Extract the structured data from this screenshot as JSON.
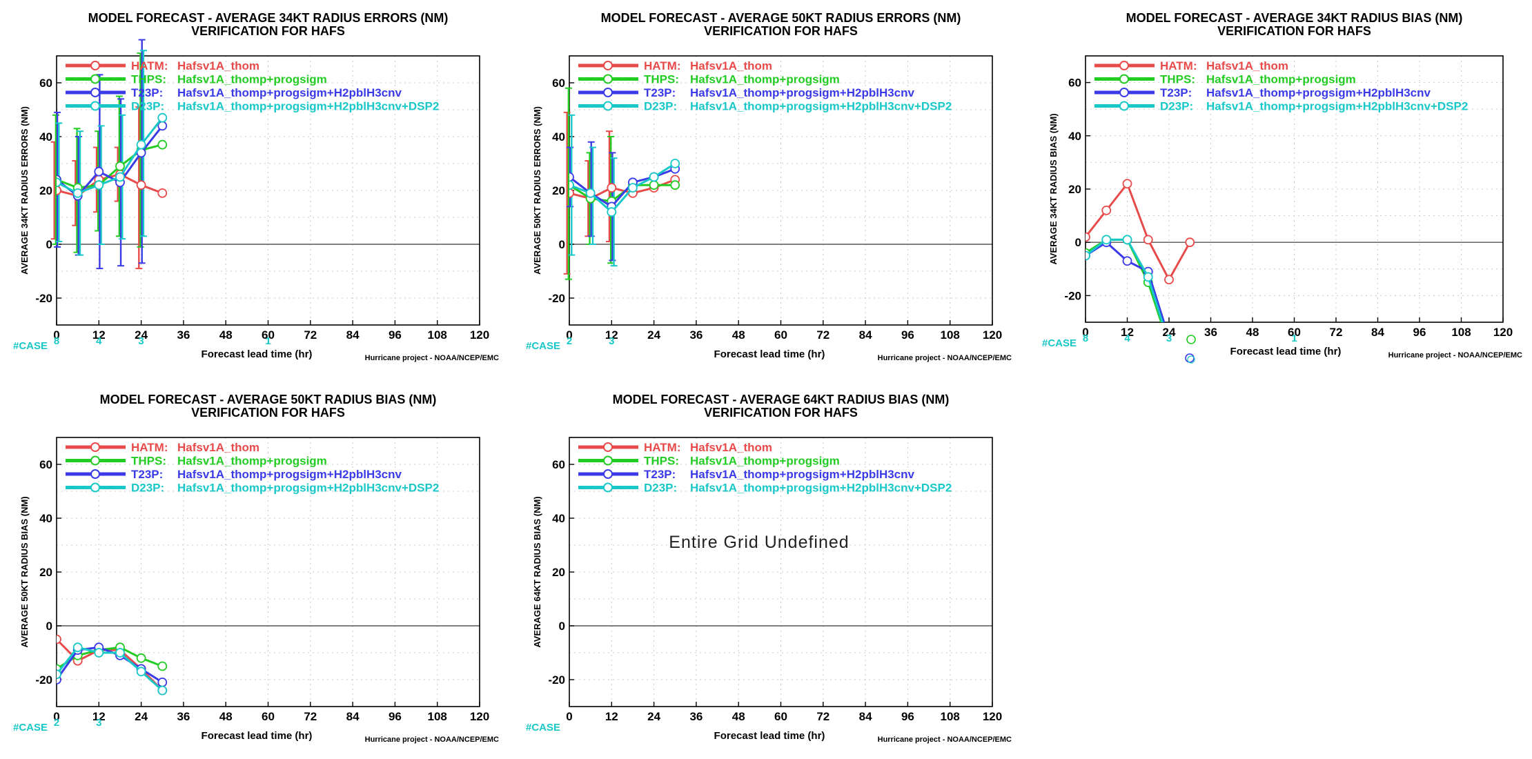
{
  "common": {
    "subtitle": "VERIFICATION FOR HAFS",
    "xlabel": "Forecast lead time (hr)",
    "credit": "Hurricane project - NOAA/NCEP/EMC",
    "cases_label": "#CASE",
    "legend": [
      {
        "code": "HATM:",
        "name": "Hafsv1A_thom",
        "color": "#e84a4a"
      },
      {
        "code": "THPS:",
        "name": "Hafsv1A_thomp+progsigm",
        "color": "#22cc22"
      },
      {
        "code": "T23P:",
        "name": "Hafsv1A_thomp+progsigm+H2pblH3cnv",
        "color": "#3a3ae8"
      },
      {
        "code": "D23P:",
        "name": "Hafsv1A_thomp+progsigm+H2pblH3cnv+DSP2",
        "color": "#18c8c8"
      }
    ]
  },
  "chart_data": [
    {
      "type": "line",
      "title": "MODEL FORECAST - AVERAGE 34KT RADIUS ERRORS (NM)",
      "subtitle": "VERIFICATION FOR HAFS",
      "ylabel": "AVERAGE 34KT RADIUS ERRORS (NM)",
      "xlabel": "Forecast lead time (hr)",
      "xlim": [
        0,
        120
      ],
      "ylim": [
        -30,
        70
      ],
      "xticks": [
        "0",
        "12",
        "24",
        "36",
        "48",
        "60",
        "72",
        "84",
        "96",
        "108",
        "120"
      ],
      "yticks": [
        "-20",
        "0",
        "20",
        "40",
        "60"
      ],
      "cases": [
        {
          "x": 0,
          "n": "8"
        },
        {
          "x": 12,
          "n": "4"
        },
        {
          "x": 24,
          "n": "3"
        },
        {
          "x": 60,
          "n": "1"
        }
      ],
      "series": [
        {
          "name": "HATM",
          "color": "#e84a4a",
          "x": [
            0,
            6,
            12,
            18,
            24,
            30
          ],
          "y": [
            20,
            18,
            24,
            26,
            22,
            19
          ],
          "errorbars": [
            [
              0,
              2,
              38
            ],
            [
              6,
              7,
              31
            ],
            [
              12,
              12,
              36
            ],
            [
              18,
              16,
              36
            ],
            [
              24,
              -9,
              51
            ]
          ]
        },
        {
          "name": "THPS",
          "color": "#22cc22",
          "x": [
            0,
            6,
            12,
            18,
            24,
            30
          ],
          "y": [
            24,
            21,
            22,
            29,
            35,
            37
          ],
          "errorbars": [
            [
              0,
              0,
              48
            ],
            [
              6,
              -3,
              43
            ],
            [
              12,
              5,
              42
            ],
            [
              18,
              3,
              55
            ],
            [
              24,
              -1,
              71
            ]
          ]
        },
        {
          "name": "T23P",
          "color": "#3a3ae8",
          "x": [
            0,
            6,
            12,
            18,
            24,
            30
          ],
          "y": [
            24,
            18,
            27,
            23,
            34,
            44
          ],
          "errorbars": [
            [
              0,
              -1,
              49
            ],
            [
              6,
              -4,
              40
            ],
            [
              12,
              -9,
              63
            ],
            [
              18,
              -8,
              54
            ],
            [
              24,
              -7,
              76
            ]
          ]
        },
        {
          "name": "D23P",
          "color": "#18c8c8",
          "x": [
            0,
            6,
            12,
            18,
            24,
            30
          ],
          "y": [
            23,
            19,
            22,
            25,
            37,
            47
          ],
          "errorbars": [
            [
              0,
              1,
              45
            ],
            [
              6,
              -4,
              42
            ],
            [
              12,
              0,
              44
            ],
            [
              18,
              2,
              48
            ],
            [
              24,
              3,
              72
            ]
          ]
        }
      ]
    },
    {
      "type": "line",
      "title": "MODEL FORECAST - AVERAGE 50KT RADIUS ERRORS (NM)",
      "subtitle": "VERIFICATION FOR HAFS",
      "ylabel": "AVERAGE 50KT RADIUS ERRORS (NM)",
      "xlabel": "Forecast lead time (hr)",
      "xlim": [
        0,
        120
      ],
      "ylim": [
        -30,
        70
      ],
      "xticks": [
        "0",
        "12",
        "24",
        "36",
        "48",
        "60",
        "72",
        "84",
        "96",
        "108",
        "120"
      ],
      "yticks": [
        "-20",
        "0",
        "20",
        "40",
        "60"
      ],
      "cases": [
        {
          "x": 0,
          "n": "2"
        },
        {
          "x": 12,
          "n": "3"
        }
      ],
      "series": [
        {
          "name": "HATM",
          "color": "#e84a4a",
          "x": [
            0,
            6,
            12,
            18,
            24,
            30
          ],
          "y": [
            19,
            17,
            21,
            19,
            21,
            24
          ],
          "errorbars": [
            [
              0,
              -11,
              49
            ],
            [
              6,
              3,
              31
            ],
            [
              12,
              1,
              42
            ]
          ]
        },
        {
          "name": "THPS",
          "color": "#22cc22",
          "x": [
            0,
            6,
            12,
            18,
            24,
            30
          ],
          "y": [
            22,
            17,
            16,
            22,
            22,
            22
          ],
          "errorbars": [
            [
              0,
              -13,
              58
            ],
            [
              6,
              0,
              34
            ],
            [
              12,
              -7,
              40
            ]
          ]
        },
        {
          "name": "T23P",
          "color": "#3a3ae8",
          "x": [
            0,
            6,
            12,
            18,
            24,
            30
          ],
          "y": [
            25,
            19,
            14,
            23,
            25,
            28
          ],
          "errorbars": [
            [
              0,
              14,
              36
            ],
            [
              6,
              3,
              38
            ],
            [
              12,
              -6,
              34
            ]
          ]
        },
        {
          "name": "D23P",
          "color": "#18c8c8",
          "x": [
            0,
            6,
            12,
            18,
            24,
            30
          ],
          "y": [
            22,
            19,
            12,
            21,
            25,
            30
          ],
          "errorbars": [
            [
              0,
              -4,
              48
            ],
            [
              6,
              0,
              36
            ],
            [
              12,
              -8,
              32
            ]
          ]
        }
      ]
    },
    {
      "type": "line",
      "title": "MODEL FORECAST - AVERAGE 34KT RADIUS BIAS (NM)",
      "subtitle": "VERIFICATION FOR HAFS",
      "ylabel": "AVERAGE 34KT RADIUS BIAS (NM)",
      "xlabel": "Forecast lead time (hr)",
      "xlim": [
        0,
        120
      ],
      "ylim": [
        -30,
        70
      ],
      "xticks": [
        "0",
        "12",
        "24",
        "36",
        "48",
        "60",
        "72",
        "84",
        "96",
        "108",
        "120"
      ],
      "yticks": [
        "-20",
        "0",
        "20",
        "40",
        "60"
      ],
      "cases": [
        {
          "x": 0,
          "n": "8"
        },
        {
          "x": 12,
          "n": "4"
        },
        {
          "x": 24,
          "n": "3"
        },
        {
          "x": 60,
          "n": "1"
        }
      ],
      "series": [
        {
          "name": "HATM",
          "color": "#e84a4a",
          "x": [
            0,
            6,
            12,
            18,
            24,
            30
          ],
          "y": [
            2,
            12,
            22,
            1,
            -14,
            0
          ]
        },
        {
          "name": "THPS",
          "color": "#22cc22",
          "x": [
            0,
            6,
            12,
            18,
            24,
            30
          ],
          "y": [
            -4,
            1,
            1,
            -15,
            -39,
            -37
          ]
        },
        {
          "name": "T23P",
          "color": "#3a3ae8",
          "x": [
            0,
            6,
            12,
            18,
            24,
            30
          ],
          "y": [
            -5,
            0,
            -7,
            -11,
            -36,
            -45
          ]
        },
        {
          "name": "D23P",
          "color": "#18c8c8",
          "x": [
            0,
            6,
            12,
            18,
            24,
            30
          ],
          "y": [
            -5,
            1,
            1,
            -13,
            -38,
            -40
          ]
        }
      ]
    },
    {
      "type": "line",
      "title": "MODEL FORECAST - AVERAGE 50KT RADIUS BIAS (NM)",
      "subtitle": "VERIFICATION FOR HAFS",
      "ylabel": "AVERAGE 50KT RADIUS BIAS (NM)",
      "xlabel": "Forecast lead time (hr)",
      "xlim": [
        0,
        120
      ],
      "ylim": [
        -30,
        70
      ],
      "xticks": [
        "0",
        "12",
        "24",
        "36",
        "48",
        "60",
        "72",
        "84",
        "96",
        "108",
        "120"
      ],
      "yticks": [
        "-20",
        "0",
        "20",
        "40",
        "60"
      ],
      "cases": [
        {
          "x": 0,
          "n": "2"
        },
        {
          "x": 12,
          "n": "3"
        }
      ],
      "series": [
        {
          "name": "HATM",
          "color": "#e84a4a",
          "x": [
            0,
            6,
            12,
            18,
            24,
            30
          ],
          "y": [
            -5,
            -13,
            -9,
            -9,
            -16,
            -24
          ]
        },
        {
          "name": "THPS",
          "color": "#22cc22",
          "x": [
            0,
            6,
            12,
            18,
            24,
            30
          ],
          "y": [
            -16,
            -11,
            -9,
            -8,
            -12,
            -15
          ]
        },
        {
          "name": "T23P",
          "color": "#3a3ae8",
          "x": [
            0,
            6,
            12,
            18,
            24,
            30
          ],
          "y": [
            -20,
            -9,
            -8,
            -11,
            -16,
            -21
          ]
        },
        {
          "name": "D23P",
          "color": "#18c8c8",
          "x": [
            0,
            6,
            12,
            18,
            24,
            30
          ],
          "y": [
            -18,
            -8,
            -10,
            -10,
            -17,
            -24
          ]
        }
      ]
    },
    {
      "type": "line",
      "title": "MODEL FORECAST - AVERAGE 64KT RADIUS BIAS (NM)",
      "subtitle": "VERIFICATION FOR HAFS",
      "ylabel": "AVERAGE 64KT RADIUS BIAS (NM)",
      "xlabel": "Forecast lead time (hr)",
      "xlim": [
        0,
        120
      ],
      "ylim": [
        -30,
        70
      ],
      "xticks": [
        "0",
        "12",
        "24",
        "36",
        "48",
        "60",
        "72",
        "84",
        "96",
        "108",
        "120"
      ],
      "yticks": [
        "-20",
        "0",
        "20",
        "40",
        "60"
      ],
      "cases": [],
      "annotation": "Entire Grid Undefined",
      "series": [
        {
          "name": "HATM",
          "color": "#e84a4a",
          "x": [],
          "y": []
        },
        {
          "name": "THPS",
          "color": "#22cc22",
          "x": [],
          "y": []
        },
        {
          "name": "T23P",
          "color": "#3a3ae8",
          "x": [],
          "y": []
        },
        {
          "name": "D23P",
          "color": "#18c8c8",
          "x": [],
          "y": []
        }
      ]
    }
  ]
}
